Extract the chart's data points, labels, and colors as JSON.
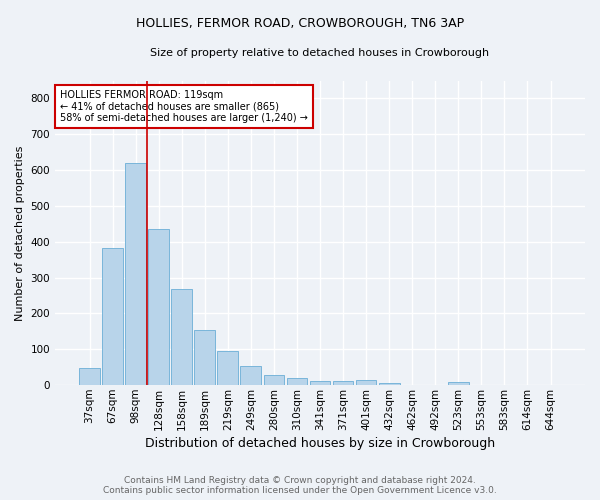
{
  "title": "HOLLIES, FERMOR ROAD, CROWBOROUGH, TN6 3AP",
  "subtitle": "Size of property relative to detached houses in Crowborough",
  "xlabel": "Distribution of detached houses by size in Crowborough",
  "ylabel": "Number of detached properties",
  "footer_line1": "Contains HM Land Registry data © Crown copyright and database right 2024.",
  "footer_line2": "Contains public sector information licensed under the Open Government Licence v3.0.",
  "categories": [
    "37sqm",
    "67sqm",
    "98sqm",
    "128sqm",
    "158sqm",
    "189sqm",
    "219sqm",
    "249sqm",
    "280sqm",
    "310sqm",
    "341sqm",
    "371sqm",
    "401sqm",
    "432sqm",
    "462sqm",
    "492sqm",
    "523sqm",
    "553sqm",
    "583sqm",
    "614sqm",
    "644sqm"
  ],
  "values": [
    47,
    383,
    621,
    437,
    267,
    153,
    96,
    54,
    29,
    19,
    11,
    12,
    13,
    7,
    0,
    0,
    8,
    0,
    0,
    0,
    0
  ],
  "bar_color": "#b8d4ea",
  "bar_edge_color": "#6aaed6",
  "background_color": "#eef2f7",
  "grid_color": "#ffffff",
  "vline_color": "#cc0000",
  "vline_pos": 2.5,
  "annotation_line1": "HOLLIES FERMOR ROAD: 119sqm",
  "annotation_line2": "← 41% of detached houses are smaller (865)",
  "annotation_line3": "58% of semi-detached houses are larger (1,240) →",
  "annotation_box_color": "#ffffff",
  "annotation_box_edge": "#cc0000",
  "ylim": [
    0,
    850
  ],
  "yticks": [
    0,
    100,
    200,
    300,
    400,
    500,
    600,
    700,
    800
  ],
  "title_fontsize": 9,
  "subtitle_fontsize": 8,
  "xlabel_fontsize": 9,
  "ylabel_fontsize": 8,
  "tick_fontsize": 7.5,
  "footer_fontsize": 6.5,
  "footer_color": "#666666"
}
